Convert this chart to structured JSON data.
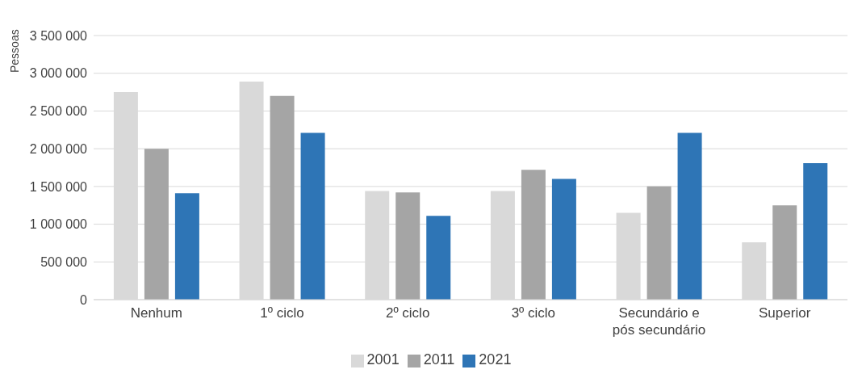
{
  "chart_data": {
    "type": "bar",
    "ylabel": "Pessoas",
    "categories": [
      "Nenhum",
      "1º ciclo",
      "2º ciclo",
      "3º ciclo",
      "Secundário e pós secundário",
      "Superior"
    ],
    "series": [
      {
        "name": "2001",
        "color": "#d9d9d9",
        "values": [
          2750000,
          2890000,
          1440000,
          1440000,
          1150000,
          760000
        ]
      },
      {
        "name": "2011",
        "color": "#a5a5a5",
        "values": [
          2000000,
          2700000,
          1420000,
          1720000,
          1500000,
          1250000
        ]
      },
      {
        "name": "2021",
        "color": "#2e75b6",
        "values": [
          1410000,
          2210000,
          1110000,
          1600000,
          2210000,
          1810000
        ]
      }
    ],
    "ylim": [
      0,
      3500000
    ],
    "yticks": [
      {
        "value": 0,
        "label": "0"
      },
      {
        "value": 500000,
        "label": "500 000"
      },
      {
        "value": 1000000,
        "label": "1 000 000"
      },
      {
        "value": 1500000,
        "label": "1 500 000"
      },
      {
        "value": 2000000,
        "label": "2 000 000"
      },
      {
        "value": 2500000,
        "label": "2 500 000"
      },
      {
        "value": 3000000,
        "label": "3 000 000"
      },
      {
        "value": 3500000,
        "label": "3 500 000"
      }
    ],
    "grid": "y",
    "legend": "bottom"
  }
}
